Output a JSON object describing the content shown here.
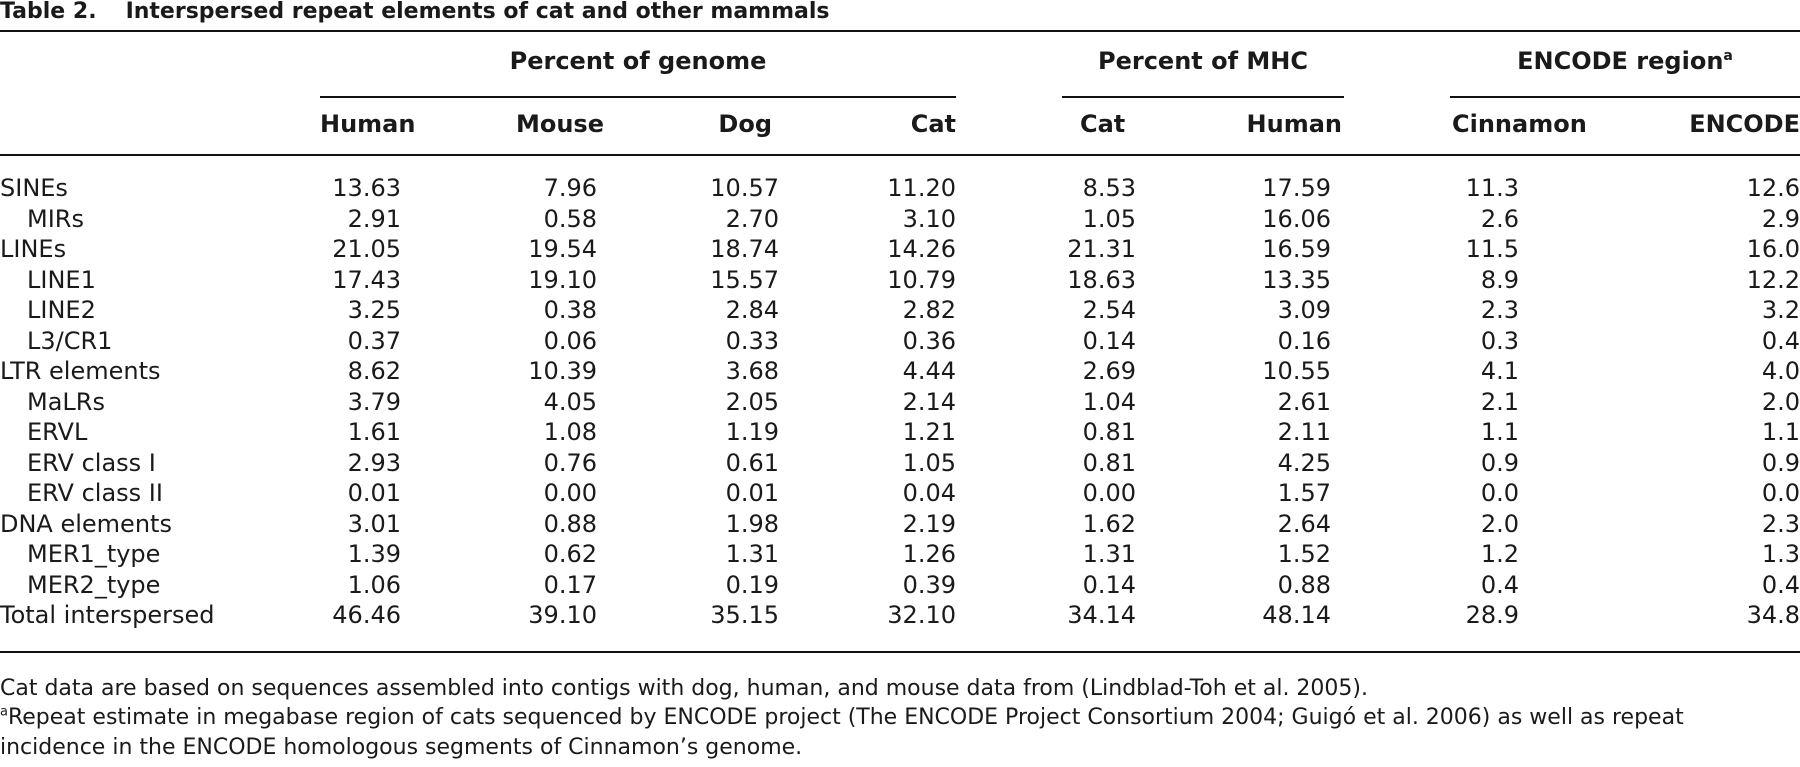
{
  "title": {
    "number": "Table 2.",
    "text": "Interspersed repeat elements of cat and other mammals"
  },
  "groups": {
    "genome": "Percent of genome",
    "mhc": "Percent of MHC",
    "encode": "ENCODE region",
    "encode_sup": "a"
  },
  "columns": [
    "Human",
    "Mouse",
    "Dog",
    "Cat",
    "Cat",
    "Human",
    "Cinnamon",
    "ENCODE"
  ],
  "rows": [
    {
      "label": "SINEs",
      "indent": false,
      "values": [
        "13.63",
        "7.96",
        "10.57",
        "11.20",
        "8.53",
        "17.59",
        "11.3",
        "12.6"
      ]
    },
    {
      "label": "MIRs",
      "indent": true,
      "values": [
        "2.91",
        "0.58",
        "2.70",
        "3.10",
        "1.05",
        "16.06",
        "2.6",
        "2.9"
      ]
    },
    {
      "label": "LINEs",
      "indent": false,
      "values": [
        "21.05",
        "19.54",
        "18.74",
        "14.26",
        "21.31",
        "16.59",
        "11.5",
        "16.0"
      ]
    },
    {
      "label": "LINE1",
      "indent": true,
      "values": [
        "17.43",
        "19.10",
        "15.57",
        "10.79",
        "18.63",
        "13.35",
        "8.9",
        "12.2"
      ]
    },
    {
      "label": "LINE2",
      "indent": true,
      "values": [
        "3.25",
        "0.38",
        "2.84",
        "2.82",
        "2.54",
        "3.09",
        "2.3",
        "3.2"
      ]
    },
    {
      "label": "L3/CR1",
      "indent": true,
      "values": [
        "0.37",
        "0.06",
        "0.33",
        "0.36",
        "0.14",
        "0.16",
        "0.3",
        "0.4"
      ]
    },
    {
      "label": "LTR elements",
      "indent": false,
      "values": [
        "8.62",
        "10.39",
        "3.68",
        "4.44",
        "2.69",
        "10.55",
        "4.1",
        "4.0"
      ]
    },
    {
      "label": "MaLRs",
      "indent": true,
      "values": [
        "3.79",
        "4.05",
        "2.05",
        "2.14",
        "1.04",
        "2.61",
        "2.1",
        "2.0"
      ]
    },
    {
      "label": "ERVL",
      "indent": true,
      "values": [
        "1.61",
        "1.08",
        "1.19",
        "1.21",
        "0.81",
        "2.11",
        "1.1",
        "1.1"
      ]
    },
    {
      "label": "ERV class I",
      "indent": true,
      "values": [
        "2.93",
        "0.76",
        "0.61",
        "1.05",
        "0.81",
        "4.25",
        "0.9",
        "0.9"
      ]
    },
    {
      "label": "ERV class II",
      "indent": true,
      "values": [
        "0.01",
        "0.00",
        "0.01",
        "0.04",
        "0.00",
        "1.57",
        "0.0",
        "0.0"
      ]
    },
    {
      "label": "DNA elements",
      "indent": false,
      "values": [
        "3.01",
        "0.88",
        "1.98",
        "2.19",
        "1.62",
        "2.64",
        "2.0",
        "2.3"
      ]
    },
    {
      "label": "MER1_type",
      "indent": true,
      "values": [
        "1.39",
        "0.62",
        "1.31",
        "1.26",
        "1.31",
        "1.52",
        "1.2",
        "1.3"
      ]
    },
    {
      "label": "MER2_type",
      "indent": true,
      "values": [
        "1.06",
        "0.17",
        "0.19",
        "0.39",
        "0.14",
        "0.88",
        "0.4",
        "0.4"
      ]
    },
    {
      "label": "Total interspersed",
      "indent": false,
      "values": [
        "46.46",
        "39.10",
        "35.15",
        "32.10",
        "34.14",
        "48.14",
        "28.9",
        "34.8"
      ]
    }
  ],
  "footnotes": {
    "note": "Cat data are based on sequences assembled into contigs with dog, human, and mouse data from (Lindblad-Toh et al. 2005).",
    "a_mark": "a",
    "a_line1": "Repeat estimate in megabase region of cats sequenced by ENCODE project (The ENCODE Project Consortium 2004; Guigó et al. 2006) as well as repeat",
    "a_line2": "incidence in the ENCODE homologous segments of Cinnamon’s genome."
  }
}
